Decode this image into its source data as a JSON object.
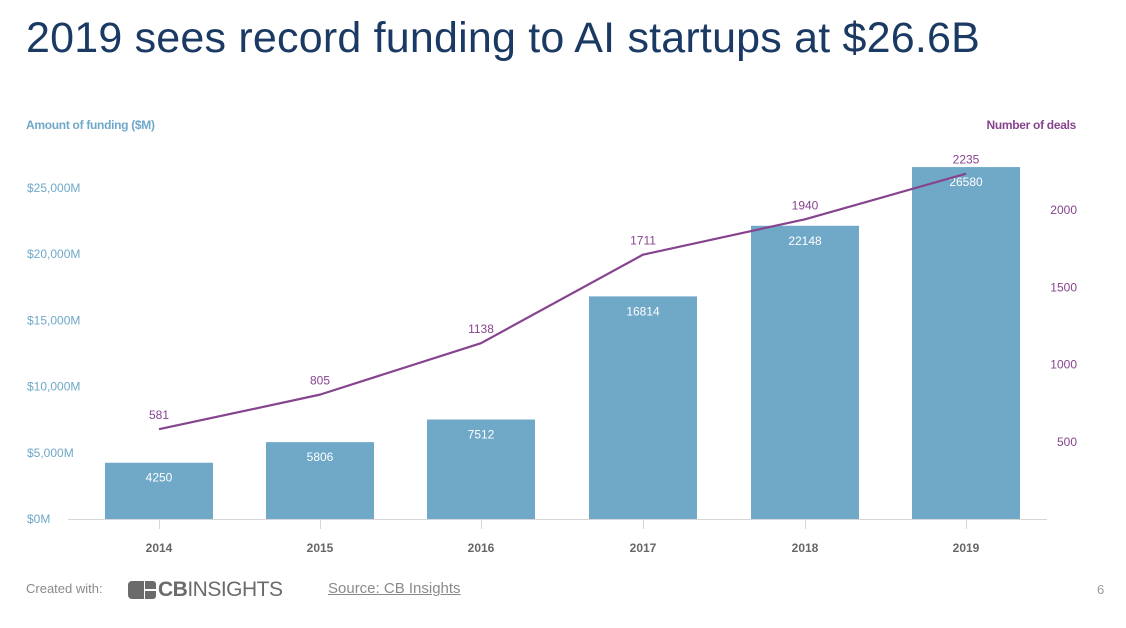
{
  "colors": {
    "title": "#1b3a63",
    "bar": "#70a8c8",
    "line": "#86448e",
    "left_axis_text": "#6fa8c8",
    "right_axis_text": "#86448e",
    "x_tick_text": "#666666",
    "bar_label": "#ffffff",
    "axis_line": "#d6d6d6"
  },
  "footer": {
    "created_with": "Created with:",
    "logo_bold": "CB",
    "logo_light": "INSIGHTS",
    "source_link": "Source: CB Insights",
    "page_number": "6"
  },
  "chart_data": {
    "type": "bar",
    "title": "2019 sees record funding to AI startups at $26.6B",
    "categories": [
      "2014",
      "2015",
      "2016",
      "2017",
      "2018",
      "2019"
    ],
    "series": [
      {
        "name": "Amount of funding ($M)",
        "type": "bar",
        "axis": "left",
        "values": [
          4250,
          5806,
          7512,
          16814,
          22148,
          26580
        ],
        "labels": [
          "4250",
          "5806",
          "7512",
          "16814",
          "22148",
          "26580"
        ]
      },
      {
        "name": "Number of deals",
        "type": "line",
        "axis": "right",
        "values": [
          581,
          805,
          1138,
          1711,
          1940,
          2235
        ],
        "labels": [
          "581",
          "805",
          "1138",
          "1711",
          "1940",
          "2235"
        ]
      }
    ],
    "left_axis": {
      "label": "Amount of funding ($M)",
      "range": [
        0,
        25000
      ],
      "ticks": [
        0,
        5000,
        10000,
        15000,
        20000,
        25000
      ],
      "tick_labels": [
        "$0M",
        "$5,000M",
        "$10,000M",
        "$15,000M",
        "$20,000M",
        "$25,000M"
      ]
    },
    "right_axis": {
      "label": "Number of deals",
      "range": [
        0,
        2000
      ],
      "ticks": [
        500,
        1000,
        1500,
        2000
      ],
      "tick_labels": [
        "500",
        "1000",
        "1500",
        "2000"
      ]
    },
    "xlabel": "",
    "grid": false,
    "legend": "none"
  }
}
